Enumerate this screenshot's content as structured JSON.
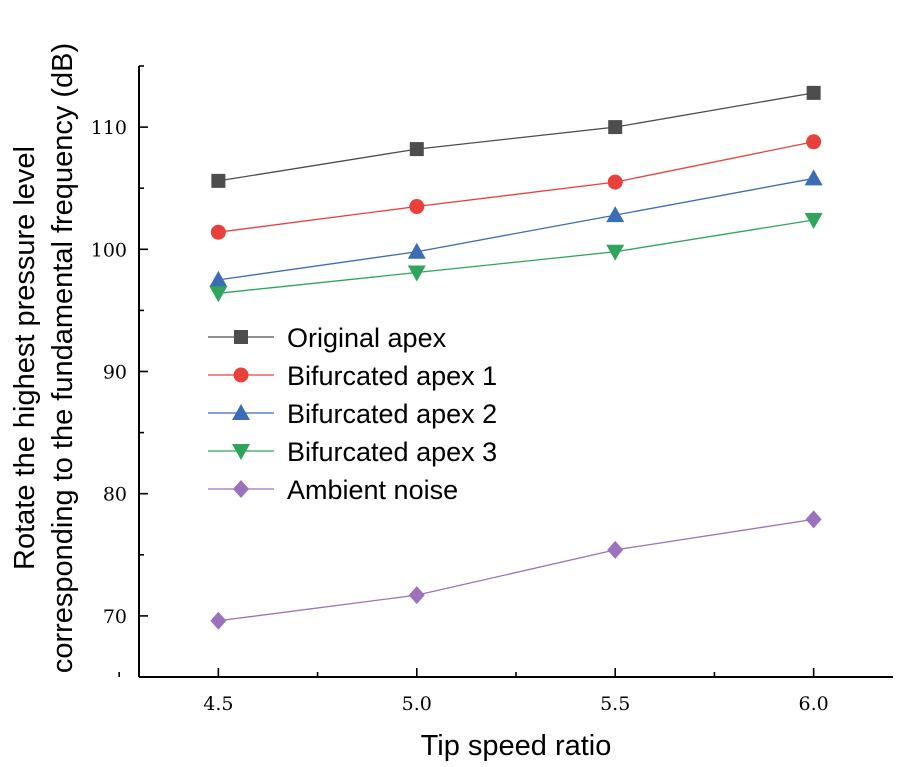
{
  "chart_data": {
    "type": "line",
    "title": "",
    "xlabel": "Tip speed ratio",
    "ylabel_lines": [
      "Rotate the highest pressure level",
      "corresponding to the fundamental frequency (dB)"
    ],
    "x": [
      4.5,
      5.0,
      5.5,
      6.0
    ],
    "x_tick_labels": [
      "4.5",
      "5.0",
      "5.5",
      "6.0"
    ],
    "y_ticks": [
      70,
      80,
      90,
      100,
      110
    ],
    "xlim": [
      4.3,
      6.2
    ],
    "ylim": [
      65,
      115
    ],
    "legend_position": "center-left",
    "series": [
      {
        "name": "Original apex",
        "marker": "square",
        "color": "#4d4d4d",
        "values": [
          105.6,
          108.2,
          110.0,
          112.8
        ]
      },
      {
        "name": "Bifurcated apex 1",
        "marker": "circle",
        "color": "#e8413c",
        "values": [
          101.4,
          103.5,
          105.5,
          108.8
        ]
      },
      {
        "name": "Bifurcated apex 2",
        "marker": "triangle-up",
        "color": "#3b6db5",
        "values": [
          97.5,
          99.8,
          102.8,
          105.8
        ]
      },
      {
        "name": "Bifurcated apex 3",
        "marker": "triangle-down",
        "color": "#2ea55a",
        "values": [
          96.4,
          98.1,
          99.8,
          102.4
        ]
      },
      {
        "name": "Ambient noise",
        "marker": "diamond",
        "color": "#9b72bb",
        "values": [
          69.6,
          71.7,
          75.4,
          77.9
        ]
      }
    ]
  }
}
